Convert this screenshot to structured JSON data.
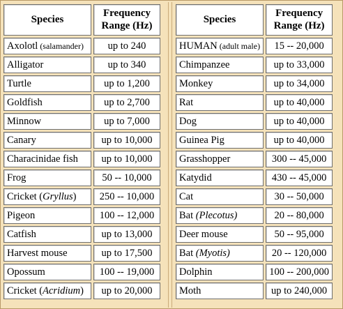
{
  "headers": {
    "species": "Species",
    "freq_line1": "Frequency",
    "freq_line2": "Range (Hz)"
  },
  "left_rows": [
    {
      "name": "Axolotl",
      "suffix": " (salamander)",
      "range": "up to 240"
    },
    {
      "name": "Alligator",
      "range": "up to 340"
    },
    {
      "name": "Turtle",
      "range": "up to 1,200"
    },
    {
      "name": "Goldfish",
      "range": "up to 2,700"
    },
    {
      "name": "Minnow",
      "range": "up to 7,000"
    },
    {
      "name": "Canary",
      "range": "up to 10,000"
    },
    {
      "name": "Characinidae fish",
      "range": "up to 10,000"
    },
    {
      "name": "Frog",
      "range": "50 -- 10,000"
    },
    {
      "name": "Cricket (",
      "italic": "Gryllus",
      "close": ")",
      "range": "250 -- 10,000"
    },
    {
      "name": "Pigeon",
      "range": "100 -- 12,000"
    },
    {
      "name": "Catfish",
      "range": "up to 13,000"
    },
    {
      "name": "Harvest mouse",
      "range": "up to 17,500"
    },
    {
      "name": "Opossum",
      "range": "100 -- 19,000"
    },
    {
      "name": "Cricket (",
      "italic": "Acridium",
      "close": ")",
      "range": "up to 20,000"
    }
  ],
  "right_rows": [
    {
      "name": "HUMAN",
      "suffix": " (adult male)",
      "range": "15 -- 20,000"
    },
    {
      "name": "Chimpanzee",
      "range": "up to 33,000"
    },
    {
      "name": "Monkey",
      "range": "up to 34,000"
    },
    {
      "name": "Rat",
      "range": "up to 40,000"
    },
    {
      "name": "Dog",
      "range": "up to 40,000"
    },
    {
      "name": "Guinea Pig",
      "range": "up to 40,000"
    },
    {
      "name": "Grasshopper",
      "range": "300 -- 45,000"
    },
    {
      "name": "Katydid",
      "range": "430 -- 45,000"
    },
    {
      "name": "Cat",
      "range": "30 -- 50,000"
    },
    {
      "name": "Bat ",
      "italic": "(Plecotus)",
      "close": "",
      "range": "20 -- 80,000"
    },
    {
      "name": "Deer mouse",
      "range": "50 -- 95,000"
    },
    {
      "name": "Bat ",
      "italic": "(Myotis)",
      "close": "",
      "range": "20 -- 120,000"
    },
    {
      "name": "Dolphin",
      "range": "100 -- 200,000"
    },
    {
      "name": "Moth",
      "range": "up to 240,000"
    }
  ]
}
